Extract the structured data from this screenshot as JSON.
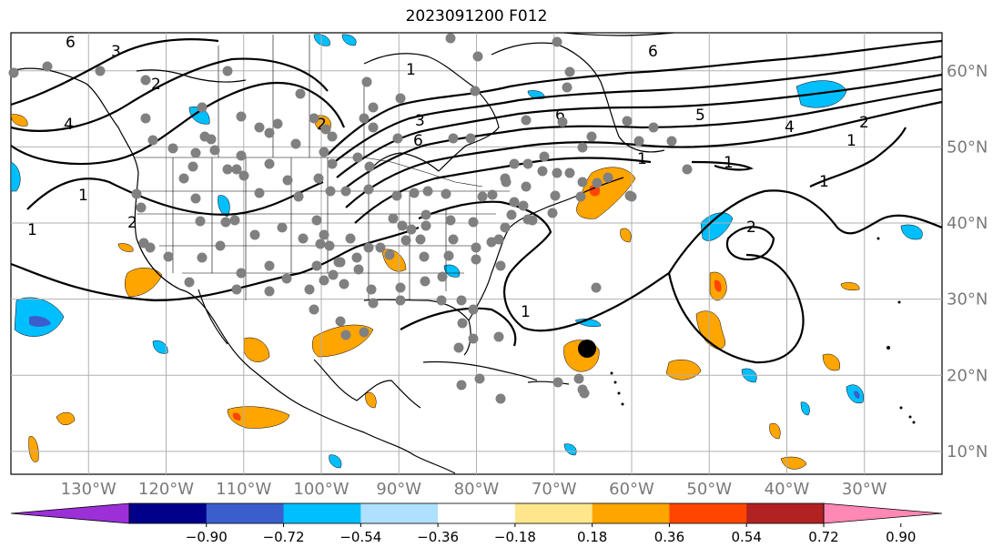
{
  "title": "2023091200 F012",
  "map": {
    "projection": "equirectangular",
    "lon_range": [
      -140,
      -20
    ],
    "lat_range": [
      7,
      65
    ],
    "lon_ticks": [
      "130°W",
      "120°W",
      "110°W",
      "100°W",
      "90°W",
      "80°W",
      "70°W",
      "60°W",
      "50°W",
      "40°W",
      "30°W"
    ],
    "lat_ticks": [
      "60°N",
      "50°N",
      "40°N",
      "30°N",
      "20°N",
      "10°N"
    ],
    "contour_levels": [
      "1",
      "2",
      "3",
      "4",
      "5",
      "6"
    ],
    "marker": "storm-center dot",
    "station_color": "#808080"
  },
  "colorbar": {
    "extend": "both",
    "tick_labels": [
      "−0.90",
      "−0.72",
      "−0.54",
      "−0.36",
      "−0.18",
      "0.18",
      "0.36",
      "0.54",
      "0.72",
      "0.90"
    ],
    "colors": [
      "#9b30d9",
      "#00008b",
      "#3a5fcd",
      "#00bfff",
      "#b0e0ff",
      "#ffffff",
      "#ffe68c",
      "#ffa500",
      "#ff4500",
      "#b22222",
      "#ff88b4"
    ]
  }
}
